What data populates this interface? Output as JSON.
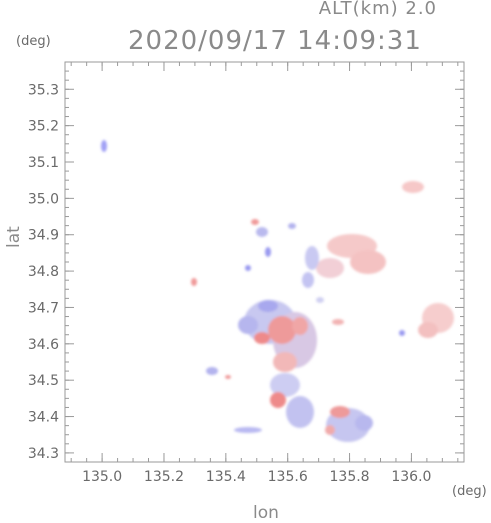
{
  "header": {
    "altitude_label": "ALT(km) 2.0",
    "datetime": "2020/09/17 14:09:31"
  },
  "axes": {
    "x_label": "lon",
    "y_label": "lat",
    "x_unit": "(deg)",
    "y_unit": "(deg)",
    "x_ticks": [
      135.0,
      135.2,
      135.4,
      135.6,
      135.8,
      136.0
    ],
    "y_ticks": [
      34.3,
      34.4,
      34.5,
      34.6,
      34.7,
      34.8,
      34.9,
      35.0,
      35.1,
      35.2,
      35.3
    ],
    "x_range": [
      134.88,
      136.17
    ],
    "y_range": [
      34.275,
      35.375
    ]
  },
  "colors": {
    "positive": "#f28a8a",
    "negative": "#8a8af2",
    "frame": "#9a9a9a"
  }
}
